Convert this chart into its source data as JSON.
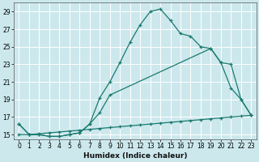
{
  "xlabel": "Humidex (Indice chaleur)",
  "bg_color": "#cce8ed",
  "grid_color": "#b0d8de",
  "line_color": "#1a7a6e",
  "line1_x": [
    0,
    1,
    2,
    3,
    4,
    5,
    6,
    7,
    8,
    9,
    10,
    11,
    12,
    13,
    14,
    15,
    16,
    17,
    18,
    19,
    20,
    21,
    22,
    23
  ],
  "line1_y": [
    16.2,
    15.0,
    15.0,
    14.8,
    14.8,
    15.0,
    15.2,
    16.2,
    19.2,
    21.0,
    23.2,
    25.5,
    27.5,
    29.0,
    29.3,
    28.0,
    26.5,
    26.2,
    25.0,
    24.8,
    23.2,
    20.3,
    19.0,
    17.2
  ],
  "line2_x": [
    0,
    1,
    2,
    3,
    4,
    5,
    6,
    7,
    8,
    9,
    19,
    20,
    21,
    22,
    23
  ],
  "line2_y": [
    16.2,
    15.0,
    15.0,
    14.8,
    14.8,
    15.0,
    15.2,
    16.2,
    17.5,
    19.5,
    24.8,
    23.2,
    23.0,
    19.0,
    17.2
  ],
  "line3_x": [
    0,
    1,
    2,
    3,
    4,
    5,
    6,
    7,
    8,
    9,
    10,
    11,
    12,
    13,
    14,
    15,
    16,
    17,
    18,
    19,
    20,
    21,
    22,
    23
  ],
  "line3_y": [
    15.0,
    15.0,
    15.1,
    15.2,
    15.3,
    15.4,
    15.5,
    15.6,
    15.7,
    15.8,
    15.9,
    16.0,
    16.1,
    16.2,
    16.3,
    16.4,
    16.5,
    16.6,
    16.7,
    16.8,
    16.9,
    17.0,
    17.1,
    17.2
  ],
  "ylim": [
    14.5,
    30.0
  ],
  "xlim": [
    -0.5,
    23.5
  ],
  "yticks": [
    15,
    17,
    19,
    21,
    23,
    25,
    27,
    29
  ],
  "xticks": [
    0,
    1,
    2,
    3,
    4,
    5,
    6,
    7,
    8,
    9,
    10,
    11,
    12,
    13,
    14,
    15,
    16,
    17,
    18,
    19,
    20,
    21,
    22,
    23
  ],
  "tick_fontsize": 5.5,
  "xlabel_fontsize": 6.5
}
